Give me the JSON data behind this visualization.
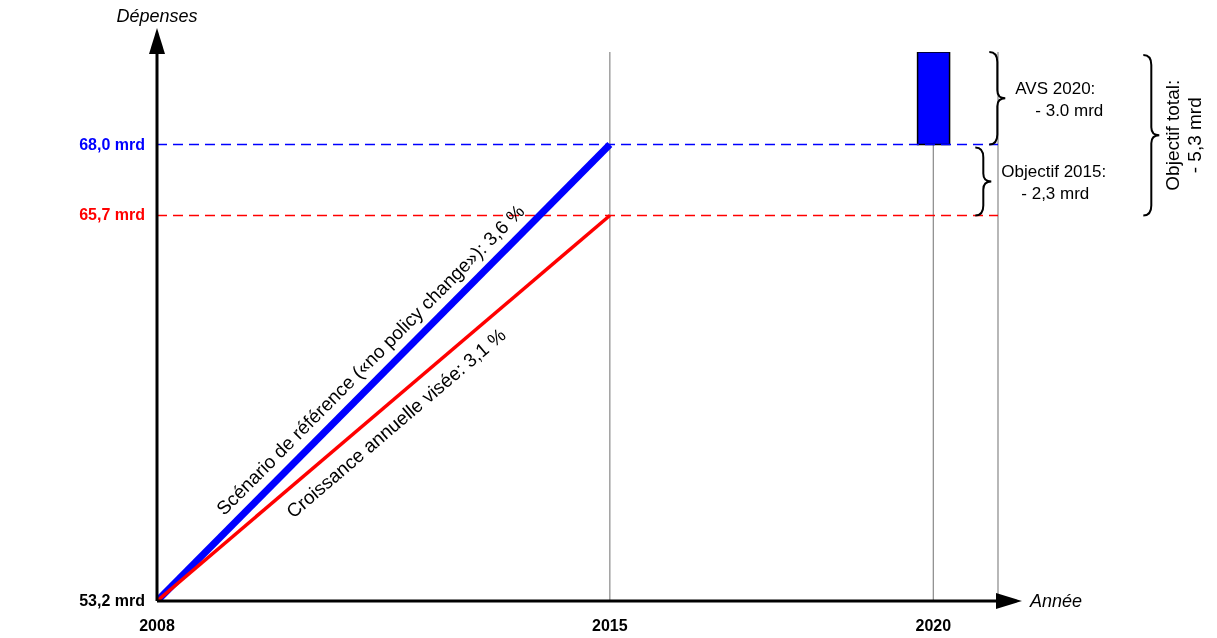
{
  "chart_data": {
    "type": "line",
    "xlabel": "Année",
    "ylabel": "Dépenses",
    "xlim": [
      2008,
      2021
    ],
    "xticks": [
      2008,
      2015,
      2020
    ],
    "ylim": [
      53.2,
      71.0
    ],
    "yticks": [
      {
        "value": 53.2,
        "label": "53,2 mrd"
      },
      {
        "value": 65.7,
        "label": "65,7 mrd"
      },
      {
        "value": 68.0,
        "label": "68,0 mrd"
      }
    ],
    "grid": "x",
    "series": [
      {
        "color": "#0000ff",
        "x": [
          2008,
          2015
        ],
        "values": [
          53.2,
          68.0
        ]
      },
      {
        "color": "#ff0000",
        "x": [
          2008,
          2015
        ],
        "values": [
          53.2,
          65.7
        ]
      },
      {
        "type": "bar",
        "color": "#0000ff",
        "x": [
          2020
        ],
        "values": [
          3.0
        ],
        "base": [
          68.0
        ]
      }
    ],
    "ref_lines": [
      {
        "axis": "y",
        "value": 68.0,
        "color": "#0000ff",
        "line_style": "dashed"
      },
      {
        "axis": "y",
        "value": 65.7,
        "color": "#ff0000",
        "line_style": "dashed"
      }
    ],
    "annotations": [
      {
        "text": "Scénario de référence («no policy change»): 3,6 %",
        "x": 2011.5,
        "y": 60.6
      },
      {
        "text": "Croissance annuelle visée: 3,1 %",
        "x": 2011.5,
        "y": 59.45
      },
      "AVS 2020:\n- 3.0 mrd",
      "Objectif 2015:\n- 2,3 mrd",
      "Objectif total:\n- 5,3 mrd"
    ]
  }
}
